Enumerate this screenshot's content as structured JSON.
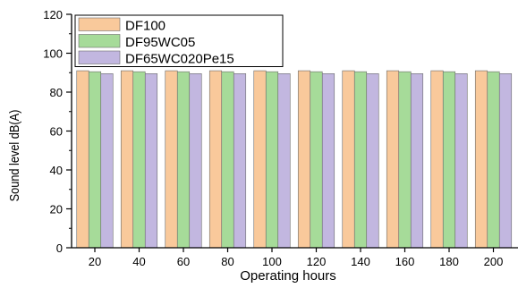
{
  "chart_data": {
    "type": "bar",
    "categories": [
      "20",
      "40",
      "60",
      "80",
      "100",
      "120",
      "140",
      "160",
      "180",
      "200"
    ],
    "series": [
      {
        "name": "DF100",
        "color": "#f9c99b",
        "values": [
          91.0,
          91.0,
          91.0,
          91.0,
          91.0,
          91.0,
          91.0,
          91.0,
          91.0,
          91.0
        ]
      },
      {
        "name": "DF95WC05",
        "color": "#a6db99",
        "values": [
          90.5,
          90.5,
          90.5,
          90.5,
          90.5,
          90.5,
          90.5,
          90.5,
          90.5,
          90.5
        ]
      },
      {
        "name": "DF65WC020Pe15",
        "color": "#c2b7e0",
        "values": [
          89.5,
          89.5,
          89.5,
          89.5,
          89.5,
          89.5,
          89.5,
          89.5,
          89.5,
          89.5
        ]
      }
    ],
    "xlabel": "Operating hours",
    "ylabel": "Sound level dB(A)",
    "ylim": [
      0,
      120
    ],
    "yticks": [
      "0",
      "20",
      "40",
      "60",
      "80",
      "100",
      "120"
    ],
    "grid": false,
    "legend_position": "top-left"
  }
}
